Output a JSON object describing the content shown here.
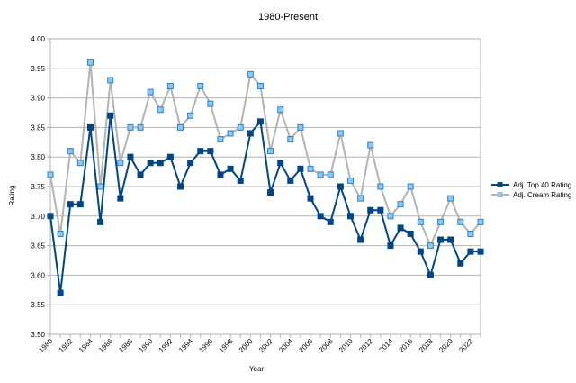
{
  "chart_data": {
    "type": "line",
    "title": "1980-Present",
    "xlabel": "Year",
    "ylabel": "Rating",
    "ylim": [
      3.5,
      4.0
    ],
    "yticks": [
      "3.50",
      "3.55",
      "3.60",
      "3.65",
      "3.70",
      "3.75",
      "3.80",
      "3.85",
      "3.90",
      "3.95",
      "4.00"
    ],
    "grid": true,
    "legend_position": "right",
    "x": [
      1980,
      1981,
      1982,
      1983,
      1984,
      1985,
      1986,
      1987,
      1988,
      1989,
      1990,
      1991,
      1992,
      1993,
      1994,
      1995,
      1996,
      1997,
      1998,
      1999,
      2000,
      2001,
      2002,
      2003,
      2004,
      2005,
      2006,
      2007,
      2008,
      2009,
      2010,
      2011,
      2012,
      2013,
      2014,
      2015,
      2016,
      2017,
      2018,
      2019,
      2020,
      2021,
      2022,
      2023
    ],
    "xtick_labels": [
      "1980",
      "1982",
      "1984",
      "1986",
      "1988",
      "1990",
      "1992",
      "1994",
      "1996",
      "1998",
      "2000",
      "2002",
      "2004",
      "2006",
      "2008",
      "2010",
      "2012",
      "2014",
      "2016",
      "2018",
      "2020",
      "2022"
    ],
    "series": [
      {
        "name": "Adj. Top 40 Rating",
        "color": "#004586",
        "values": [
          3.7,
          3.57,
          3.72,
          3.72,
          3.85,
          3.69,
          3.87,
          3.73,
          3.8,
          3.77,
          3.79,
          3.79,
          3.8,
          3.75,
          3.79,
          3.81,
          3.81,
          3.77,
          3.78,
          3.76,
          3.84,
          3.86,
          3.74,
          3.79,
          3.76,
          3.78,
          3.73,
          3.7,
          3.69,
          3.75,
          3.7,
          3.66,
          3.71,
          3.71,
          3.65,
          3.68,
          3.67,
          3.64,
          3.6,
          3.66,
          3.66,
          3.62,
          3.64,
          3.64
        ]
      },
      {
        "name": "Adj. Cream Rating",
        "color": "#b3b3b3",
        "marker_color": "#83caff",
        "values": [
          3.77,
          3.67,
          3.81,
          3.79,
          3.96,
          3.75,
          3.93,
          3.79,
          3.85,
          3.85,
          3.91,
          3.88,
          3.92,
          3.85,
          3.87,
          3.92,
          3.89,
          3.83,
          3.84,
          3.85,
          3.94,
          3.92,
          3.81,
          3.88,
          3.83,
          3.85,
          3.78,
          3.77,
          3.77,
          3.84,
          3.76,
          3.73,
          3.82,
          3.75,
          3.7,
          3.72,
          3.75,
          3.69,
          3.65,
          3.69,
          3.73,
          3.69,
          3.67,
          3.69
        ]
      }
    ]
  }
}
